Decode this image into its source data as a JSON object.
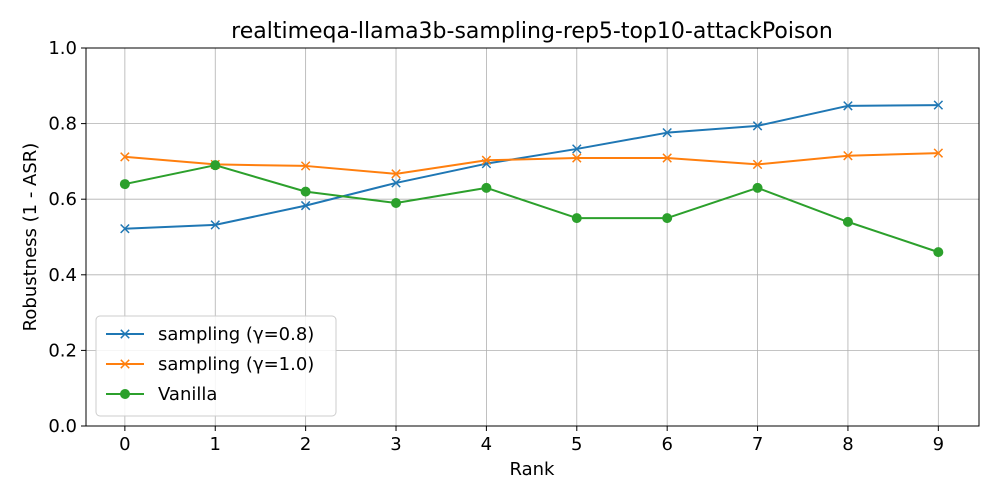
{
  "chart_data": {
    "type": "line",
    "title": "realtimeqa-llama3b-sampling-rep5-top10-attackPoison",
    "xlabel": "Rank",
    "ylabel": "Robustness (1 - ASR)",
    "x": [
      0,
      1,
      2,
      3,
      4,
      5,
      6,
      7,
      8,
      9
    ],
    "xticks": [
      "0",
      "1",
      "2",
      "3",
      "4",
      "5",
      "6",
      "7",
      "8",
      "9"
    ],
    "yticks": [
      "0.0",
      "0.2",
      "0.4",
      "0.6",
      "0.8",
      "1.0"
    ],
    "xlim": [
      -0.43,
      9.45
    ],
    "ylim": [
      0.0,
      1.0
    ],
    "grid": true,
    "legend_position": "lower-left",
    "series": [
      {
        "name": "sampling (γ=0.8)",
        "color": "#1f77b4",
        "marker": "x",
        "values": [
          0.522,
          0.532,
          0.583,
          0.643,
          0.694,
          0.733,
          0.776,
          0.794,
          0.847,
          0.849
        ]
      },
      {
        "name": "sampling (γ=1.0)",
        "color": "#ff7f0e",
        "marker": "x",
        "values": [
          0.712,
          0.692,
          0.688,
          0.667,
          0.703,
          0.709,
          0.709,
          0.692,
          0.715,
          0.722
        ]
      },
      {
        "name": "Vanilla",
        "color": "#2ca02c",
        "marker": "circle",
        "values": [
          0.64,
          0.69,
          0.62,
          0.59,
          0.63,
          0.55,
          0.55,
          0.63,
          0.54,
          0.46
        ]
      }
    ]
  }
}
